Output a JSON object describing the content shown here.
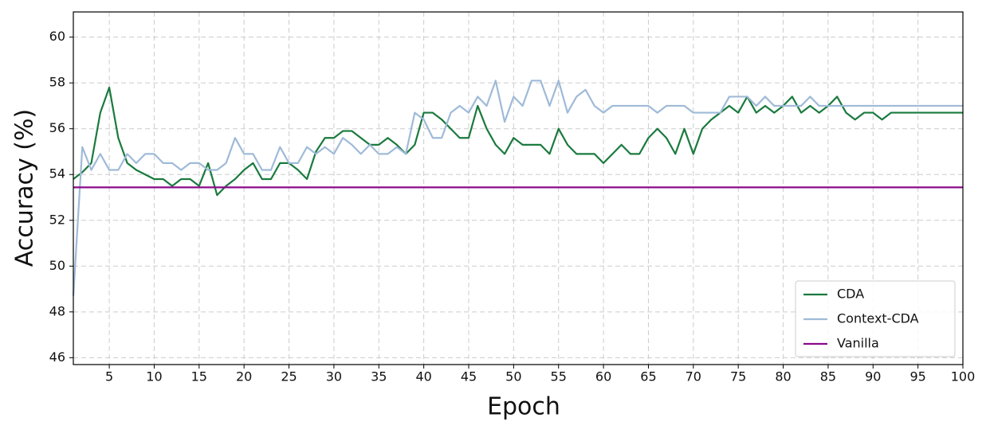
{
  "chart_data": {
    "type": "line",
    "xlabel": "Epoch",
    "ylabel": "Accuracy (%)",
    "x": [
      1,
      2,
      3,
      4,
      5,
      6,
      7,
      8,
      9,
      10,
      11,
      12,
      13,
      14,
      15,
      16,
      17,
      18,
      19,
      20,
      21,
      22,
      23,
      24,
      25,
      26,
      27,
      28,
      29,
      30,
      31,
      32,
      33,
      34,
      35,
      36,
      37,
      38,
      39,
      40,
      41,
      42,
      43,
      44,
      45,
      46,
      47,
      48,
      49,
      50,
      51,
      52,
      53,
      54,
      55,
      56,
      57,
      58,
      59,
      60,
      61,
      62,
      63,
      64,
      65,
      66,
      67,
      68,
      69,
      70,
      71,
      72,
      73,
      74,
      75,
      76,
      77,
      78,
      79,
      80,
      81,
      82,
      83,
      84,
      85,
      86,
      87,
      88,
      89,
      90,
      91,
      92,
      93,
      94,
      95,
      96,
      97,
      98,
      99,
      100
    ],
    "series": [
      {
        "name": "CDA",
        "color": "#1a7a3e",
        "values": [
          53.8,
          54.1,
          54.5,
          56.7,
          57.8,
          55.6,
          54.5,
          54.2,
          54.0,
          53.8,
          53.8,
          53.5,
          53.8,
          53.8,
          53.5,
          54.5,
          53.1,
          53.5,
          53.8,
          54.2,
          54.5,
          53.8,
          53.8,
          54.5,
          54.5,
          54.2,
          53.8,
          55.0,
          55.6,
          55.6,
          55.9,
          55.9,
          55.6,
          55.3,
          55.3,
          55.6,
          55.3,
          54.9,
          55.3,
          56.7,
          56.7,
          56.4,
          56.0,
          55.6,
          55.6,
          57.0,
          56.0,
          55.3,
          54.9,
          55.6,
          55.3,
          55.3,
          55.3,
          54.9,
          56.0,
          55.3,
          54.9,
          54.9,
          54.9,
          54.5,
          54.9,
          55.3,
          54.9,
          54.9,
          55.6,
          56.0,
          55.6,
          54.9,
          56.0,
          54.9,
          56.0,
          56.4,
          56.7,
          57.0,
          56.7,
          57.4,
          56.7,
          57.0,
          56.7,
          57.0,
          57.4,
          56.7,
          57.0,
          56.7,
          57.0,
          57.4,
          56.7,
          56.4,
          56.7,
          56.7,
          56.4,
          56.7,
          56.7,
          56.7,
          56.7,
          56.7,
          56.7,
          56.7,
          56.7,
          56.7
        ]
      },
      {
        "name": "Context-CDA",
        "color": "#9fbad8",
        "values": [
          48.7,
          55.2,
          54.2,
          54.9,
          54.2,
          54.2,
          54.9,
          54.5,
          54.9,
          54.9,
          54.5,
          54.5,
          54.2,
          54.5,
          54.5,
          54.2,
          54.2,
          54.5,
          55.6,
          54.9,
          54.9,
          54.2,
          54.2,
          55.2,
          54.5,
          54.5,
          55.2,
          54.9,
          55.2,
          54.9,
          55.6,
          55.3,
          54.9,
          55.3,
          54.9,
          54.9,
          55.2,
          54.9,
          56.7,
          56.4,
          55.6,
          55.6,
          56.7,
          57.0,
          56.7,
          57.4,
          57.0,
          58.1,
          56.3,
          57.4,
          57.0,
          58.1,
          58.1,
          57.0,
          58.1,
          56.7,
          57.4,
          57.7,
          57.0,
          56.7,
          57.0,
          57.0,
          57.0,
          57.0,
          57.0,
          56.7,
          57.0,
          57.0,
          57.0,
          56.7,
          56.7,
          56.7,
          56.7,
          57.4,
          57.4,
          57.4,
          57.0,
          57.4,
          57.0,
          57.0,
          57.0,
          57.0,
          57.4,
          57.0,
          57.0,
          57.0,
          57.0,
          57.0,
          57.0,
          57.0,
          57.0,
          57.0,
          57.0,
          57.0,
          57.0,
          57.0,
          57.0,
          57.0,
          57.0,
          57.0
        ]
      },
      {
        "name": "Vanilla",
        "color": "#8b0a8b",
        "x": [
          1,
          100
        ],
        "values": [
          53.44,
          53.44
        ]
      }
    ],
    "xlim": [
      1,
      100
    ],
    "xticks": [
      5,
      10,
      15,
      20,
      25,
      30,
      35,
      40,
      45,
      50,
      55,
      60,
      65,
      70,
      75,
      80,
      85,
      90,
      95,
      100
    ],
    "ylim": [
      45.7,
      61.1
    ],
    "yticks": [
      46,
      48,
      50,
      52,
      54,
      56,
      58,
      60
    ],
    "grid": true,
    "legend": "lower right"
  }
}
